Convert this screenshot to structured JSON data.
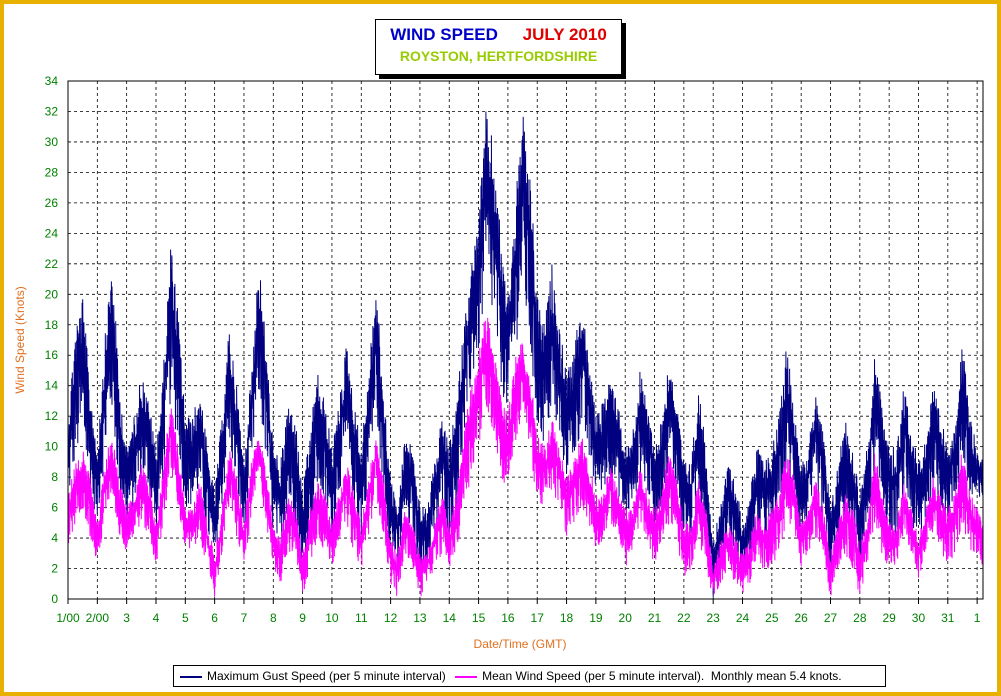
{
  "title": {
    "main": "WIND SPEED",
    "month": "JULY 2010",
    "location": "ROYSTON, HERTFORDSHIRE"
  },
  "colors": {
    "frame": "#e8b000",
    "gust": "#000080",
    "mean": "#ff00ff",
    "axis_text": "#008000",
    "axis_title": "#e07020",
    "grid": "#000000"
  },
  "chart_data": {
    "type": "line",
    "title": "WIND SPEED JULY 2010",
    "subtitle": "ROYSTON, HERTFORDSHIRE",
    "xlabel": "Date/Time (GMT)",
    "ylabel": "Wind Speed (Knots)",
    "ylim": [
      0,
      34
    ],
    "yticks": [
      0,
      2,
      4,
      6,
      8,
      10,
      12,
      14,
      16,
      18,
      20,
      22,
      24,
      26,
      28,
      30,
      32,
      34
    ],
    "xlim": [
      1,
      32.2
    ],
    "xtick_labels": [
      "1/00",
      "2/00",
      "3",
      "4",
      "5",
      "6",
      "7",
      "8",
      "9",
      "10",
      "11",
      "12",
      "13",
      "14",
      "15",
      "16",
      "17",
      "18",
      "19",
      "20",
      "21",
      "22",
      "23",
      "24",
      "25",
      "26",
      "27",
      "28",
      "29",
      "30",
      "31",
      "1"
    ],
    "grid": true,
    "legend_position": "bottom",
    "x_unit": "day of month (fractional)",
    "series": [
      {
        "name": "Maximum Gust Speed (per 5 minute interval)",
        "color": "#000080",
        "x": [
          1.0,
          1.25,
          1.5,
          1.75,
          2.0,
          2.25,
          2.5,
          2.75,
          3.0,
          3.25,
          3.5,
          3.75,
          4.0,
          4.25,
          4.5,
          4.75,
          5.0,
          5.25,
          5.5,
          5.75,
          6.0,
          6.25,
          6.5,
          6.75,
          7.0,
          7.25,
          7.5,
          7.75,
          8.0,
          8.25,
          8.5,
          8.75,
          9.0,
          9.25,
          9.5,
          9.75,
          10.0,
          10.25,
          10.5,
          10.75,
          11.0,
          11.25,
          11.5,
          11.75,
          12.0,
          12.25,
          12.5,
          12.75,
          13.0,
          13.25,
          13.5,
          13.75,
          14.0,
          14.25,
          14.5,
          14.75,
          15.0,
          15.25,
          15.5,
          15.75,
          16.0,
          16.25,
          16.5,
          16.75,
          17.0,
          17.25,
          17.5,
          17.75,
          18.0,
          18.25,
          18.5,
          18.75,
          19.0,
          19.25,
          19.5,
          19.75,
          20.0,
          20.25,
          20.5,
          20.75,
          21.0,
          21.25,
          21.5,
          21.75,
          22.0,
          22.25,
          22.5,
          22.75,
          23.0,
          23.25,
          23.5,
          23.75,
          24.0,
          24.25,
          24.5,
          24.75,
          25.0,
          25.25,
          25.5,
          25.75,
          26.0,
          26.25,
          26.5,
          26.75,
          27.0,
          27.25,
          27.5,
          27.75,
          28.0,
          28.25,
          28.5,
          28.75,
          29.0,
          29.25,
          29.5,
          29.75,
          30.0,
          30.25,
          30.5,
          30.75,
          31.0,
          31.25,
          31.5,
          31.75,
          32.0,
          32.2
        ],
        "lo": [
          6,
          9,
          10,
          7,
          5,
          9,
          12,
          7,
          5,
          6,
          8,
          7,
          4,
          8,
          13,
          10,
          6,
          6,
          7,
          4,
          2,
          6,
          10,
          7,
          4,
          8,
          13,
          9,
          4,
          3,
          6,
          5,
          1,
          4,
          7,
          6,
          4,
          7,
          9,
          6,
          4,
          8,
          12,
          7,
          3,
          2,
          5,
          4,
          2,
          2,
          4,
          6,
          4,
          6,
          10,
          14,
          16,
          20,
          18,
          14,
          12,
          16,
          20,
          16,
          11,
          10,
          12,
          10,
          8,
          9,
          11,
          9,
          7,
          7,
          8,
          7,
          5,
          6,
          8,
          7,
          5,
          6,
          9,
          7,
          4,
          4,
          7,
          4,
          0,
          2,
          4,
          3,
          1,
          2,
          4,
          4,
          4,
          6,
          8,
          7,
          4,
          5,
          7,
          5,
          1,
          3,
          5,
          4,
          2,
          4,
          8,
          6,
          4,
          4,
          7,
          5,
          3,
          5,
          7,
          6,
          5,
          6,
          9,
          6,
          6,
          6
        ],
        "hi": [
          12,
          18,
          20,
          14,
          10,
          17,
          22.5,
          14,
          10,
          12,
          15,
          13,
          10,
          15,
          23.5,
          19,
          12,
          12,
          14,
          10,
          7,
          12,
          18,
          14,
          9,
          15,
          22.5,
          17,
          10,
          9,
          13,
          12,
          7,
          11,
          15,
          13,
          10,
          13,
          17,
          13,
          10,
          15,
          21,
          14,
          8,
          6,
          11,
          10,
          6,
          6,
          9,
          12,
          10,
          13,
          18,
          22,
          25,
          32,
          30,
          24,
          20,
          26,
          32,
          28,
          20,
          18,
          22,
          18,
          15,
          16,
          20,
          16,
          12,
          13,
          15,
          13,
          10,
          11,
          15,
          13,
          10,
          12,
          16,
          13,
          9,
          9,
          14,
          10,
          4,
          6,
          9,
          8,
          5,
          7,
          10,
          9,
          10,
          12,
          17,
          13,
          9,
          10,
          14,
          11,
          6,
          9,
          12,
          10,
          7,
          10,
          16,
          13,
          10,
          10,
          14,
          12,
          9,
          11,
          14,
          12,
          10,
          12,
          17,
          12,
          10,
          9
        ]
      },
      {
        "name": "Mean Wind Speed (per 5 minute interval).  Monthly mean 5.4 knots.",
        "color": "#ff00ff",
        "x": [
          1.0,
          1.25,
          1.5,
          1.75,
          2.0,
          2.25,
          2.5,
          2.75,
          3.0,
          3.25,
          3.5,
          3.75,
          4.0,
          4.25,
          4.5,
          4.75,
          5.0,
          5.25,
          5.5,
          5.75,
          6.0,
          6.25,
          6.5,
          6.75,
          7.0,
          7.25,
          7.5,
          7.75,
          8.0,
          8.25,
          8.5,
          8.75,
          9.0,
          9.25,
          9.5,
          9.75,
          10.0,
          10.25,
          10.5,
          10.75,
          11.0,
          11.25,
          11.5,
          11.75,
          12.0,
          12.25,
          12.5,
          12.75,
          13.0,
          13.25,
          13.5,
          13.75,
          14.0,
          14.25,
          14.5,
          14.75,
          15.0,
          15.25,
          15.5,
          15.75,
          16.0,
          16.25,
          16.5,
          16.75,
          17.0,
          17.25,
          17.5,
          17.75,
          18.0,
          18.25,
          18.5,
          18.75,
          19.0,
          19.25,
          19.5,
          19.75,
          20.0,
          20.25,
          20.5,
          20.75,
          21.0,
          21.25,
          21.5,
          21.75,
          22.0,
          22.25,
          22.5,
          22.75,
          23.0,
          23.25,
          23.5,
          23.75,
          24.0,
          24.25,
          24.5,
          24.75,
          25.0,
          25.25,
          25.5,
          25.75,
          26.0,
          26.25,
          26.5,
          26.75,
          27.0,
          27.25,
          27.5,
          27.75,
          28.0,
          28.25,
          28.5,
          28.75,
          29.0,
          29.25,
          29.5,
          29.75,
          30.0,
          30.25,
          30.5,
          30.75,
          31.0,
          31.25,
          31.5,
          31.75,
          32.0,
          32.2
        ],
        "lo": [
          3,
          5,
          6,
          4,
          2,
          5,
          7,
          4,
          3,
          4,
          5,
          4,
          2,
          5,
          8,
          6,
          3,
          3,
          4,
          2,
          0,
          3,
          6,
          4,
          2,
          5,
          8,
          5,
          2,
          1,
          3,
          3,
          0,
          2,
          4,
          3,
          2,
          4,
          5,
          3,
          2,
          4,
          7,
          4,
          1,
          0,
          3,
          2,
          0,
          1,
          2,
          3,
          2,
          3,
          6,
          8,
          10,
          12,
          11,
          8,
          7,
          10,
          12,
          10,
          6,
          6,
          7,
          6,
          4,
          5,
          6,
          5,
          3,
          4,
          5,
          4,
          2,
          3,
          5,
          4,
          2,
          3,
          5,
          4,
          1,
          2,
          4,
          2,
          0,
          1,
          2,
          1,
          0,
          1,
          2,
          2,
          2,
          3,
          5,
          4,
          2,
          3,
          4,
          3,
          0,
          2,
          3,
          2,
          0,
          2,
          5,
          3,
          2,
          2,
          4,
          3,
          1,
          3,
          4,
          3,
          2,
          3,
          5,
          3,
          3,
          2
        ],
        "hi": [
          7,
          9,
          10,
          8,
          5,
          9,
          11,
          8,
          6,
          7,
          9,
          8,
          5,
          9,
          13,
          10,
          6,
          6,
          8,
          5,
          3,
          6,
          10,
          8,
          5,
          9,
          11,
          9,
          5,
          4,
          7,
          6,
          3,
          6,
          8,
          7,
          5,
          7,
          9,
          7,
          5,
          8,
          11,
          8,
          4,
          3,
          6,
          5,
          3,
          3,
          5,
          7,
          5,
          7,
          11,
          14,
          16,
          19,
          17,
          14,
          12,
          16,
          17,
          15,
          11,
          10,
          12,
          10,
          8,
          9,
          11,
          9,
          7,
          7,
          9,
          7,
          6,
          6,
          9,
          7,
          6,
          7,
          10,
          8,
          5,
          5,
          8,
          6,
          2,
          4,
          5,
          4,
          3,
          4,
          6,
          5,
          6,
          7,
          10,
          8,
          5,
          6,
          8,
          6,
          3,
          5,
          7,
          6,
          4,
          5,
          10,
          7,
          5,
          5,
          8,
          6,
          4,
          6,
          8,
          7,
          6,
          7,
          10,
          7,
          6,
          5
        ]
      }
    ]
  },
  "legend": {
    "gust_label": "Maximum Gust Speed (per 5 minute interval)",
    "mean_label": "Mean Wind Speed (per 5 minute interval).  Monthly mean 5.4 knots."
  }
}
